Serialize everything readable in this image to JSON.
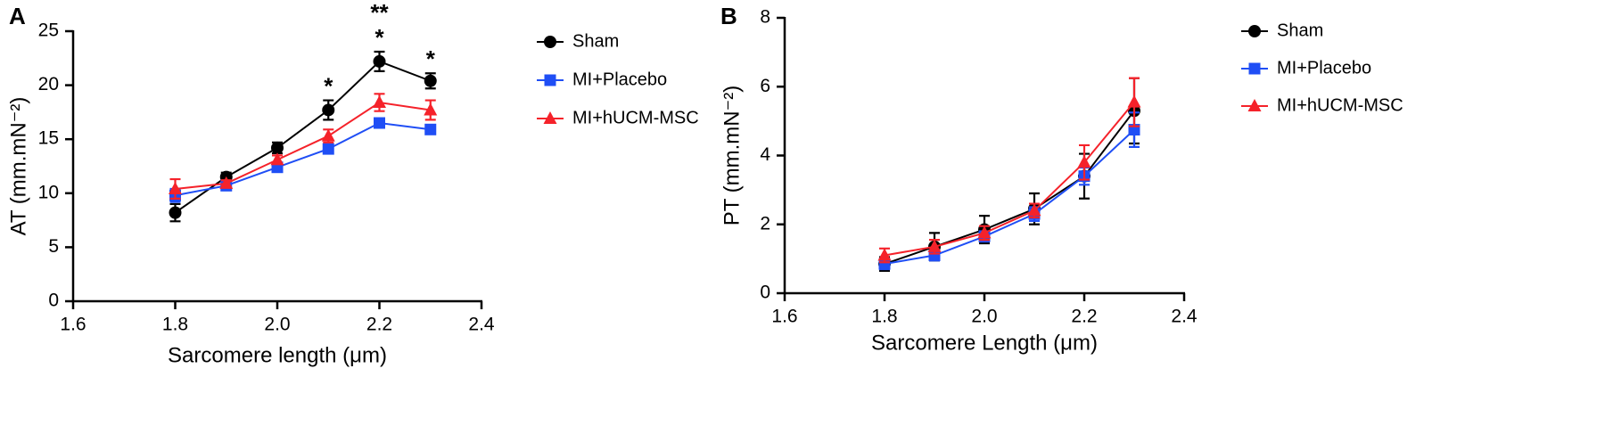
{
  "chart_data": [
    {
      "type": "line",
      "panel_label": "A",
      "x_label": "Sarcomere length (μm)",
      "y_label": "AT (mm.mN⁻²)",
      "xlim": [
        1.6,
        2.4
      ],
      "xticks": [
        1.6,
        1.8,
        {
          "value": 2,
          "label": "2.0"
        },
        2.2,
        2.4
      ],
      "ylim": [
        0,
        25
      ],
      "yticks": [
        0,
        5,
        10,
        15,
        20,
        25
      ],
      "x": [
        1.8,
        1.9,
        2.0,
        2.1,
        2.2,
        2.3
      ],
      "legend": "right",
      "series": [
        {
          "name": "Sham",
          "color": "#000000",
          "marker": "circle",
          "values": [
            8.2,
            11.5,
            14.2,
            17.7,
            22.2,
            20.4
          ],
          "errors": [
            0.8,
            0.4,
            0.5,
            0.9,
            0.9,
            0.7
          ]
        },
        {
          "name": "MI+Placebo",
          "color": "#1f4ef5",
          "marker": "square",
          "values": [
            9.8,
            10.7,
            12.4,
            14.1,
            16.5,
            15.9
          ],
          "errors": [
            0.6,
            0.3,
            0.3,
            0.3,
            0.4,
            0.4
          ]
        },
        {
          "name": "MI+hUCM-MSC",
          "color": "#f5222a",
          "marker": "triangle",
          "values": [
            10.4,
            10.9,
            13.1,
            15.3,
            18.4,
            17.7
          ],
          "errors": [
            0.9,
            0.3,
            0.4,
            0.6,
            0.8,
            0.9
          ]
        }
      ],
      "annotations": [
        {
          "text": "*",
          "x": 2.1
        },
        {
          "text": "*",
          "x": 2.2
        },
        {
          "text": "**",
          "x": 2.2
        },
        {
          "text": "*",
          "x": 2.3
        }
      ]
    },
    {
      "type": "line",
      "panel_label": "B",
      "x_label": "Sarcomere Length (μm)",
      "y_label": "PT (mm.mN⁻²)",
      "xlim": [
        1.6,
        2.4
      ],
      "xticks": [
        1.6,
        1.8,
        {
          "value": 2,
          "label": "2.0"
        },
        2.2,
        2.4
      ],
      "ylim": [
        0,
        8
      ],
      "yticks": [
        0,
        2,
        4,
        6,
        8
      ],
      "x": [
        1.8,
        1.9,
        2.0,
        2.1,
        2.2,
        2.3
      ],
      "legend": "right",
      "series": [
        {
          "name": "Sham",
          "color": "#000000",
          "marker": "circle",
          "values": [
            0.85,
            1.35,
            1.85,
            2.45,
            3.4,
            5.3
          ],
          "errors": [
            0.2,
            0.4,
            0.4,
            0.45,
            0.65,
            0.95
          ]
        },
        {
          "name": "MI+Placebo",
          "color": "#1f4ef5",
          "marker": "square",
          "values": [
            0.85,
            1.1,
            1.65,
            2.3,
            3.4,
            4.75
          ],
          "errors": [
            0.15,
            0.15,
            0.15,
            0.2,
            0.25,
            0.5
          ]
        },
        {
          "name": "MI+hUCM-MSC",
          "color": "#f5222a",
          "marker": "triangle",
          "values": [
            1.1,
            1.35,
            1.75,
            2.4,
            3.8,
            5.55
          ],
          "errors": [
            0.2,
            0.2,
            0.2,
            0.2,
            0.5,
            0.7
          ]
        }
      ]
    }
  ]
}
